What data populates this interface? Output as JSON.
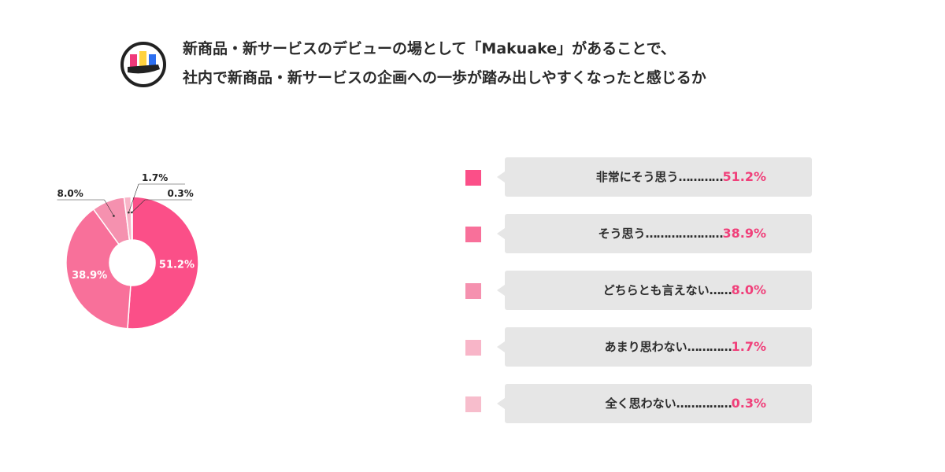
{
  "header": {
    "title_line1": "新商品・新サービスのデビューの場として「Makuake」があることで、",
    "title_line2": "社内で新商品・新サービスの企画への一歩が踏み出しやすくなったと感じるか"
  },
  "colors": {
    "logo_pink": "#f0397a",
    "logo_yellow": "#ffd23f",
    "logo_blue": "#2d6ff0",
    "divider": "#ffffff",
    "leader": "#333333",
    "value_pink": "#f0407a"
  },
  "chart_data": {
    "type": "pie",
    "variant": "donut",
    "title": "社内で新商品・新サービスの企画への一歩が踏み出しやすくなったと感じるか",
    "legend_position": "right",
    "slices": [
      {
        "label": "非常にそう思う",
        "value": 51.2,
        "display": "51.2%",
        "dots": "…………",
        "color": "#fb4f88"
      },
      {
        "label": "そう思う",
        "value": 38.9,
        "display": "38.9%",
        "dots": "…………………",
        "color": "#f8709a"
      },
      {
        "label": "どちらとも言えない",
        "value": 8.0,
        "display": "8.0%",
        "dots": "……",
        "color": "#f591af"
      },
      {
        "label": "あまり思わない",
        "value": 1.7,
        "display": "1.7%",
        "dots": "…………",
        "color": "#f8b5c8"
      },
      {
        "label": "全く思わない",
        "value": 0.3,
        "display": "0.3%",
        "dots": "……………",
        "color": "#f7bdcc"
      }
    ]
  }
}
